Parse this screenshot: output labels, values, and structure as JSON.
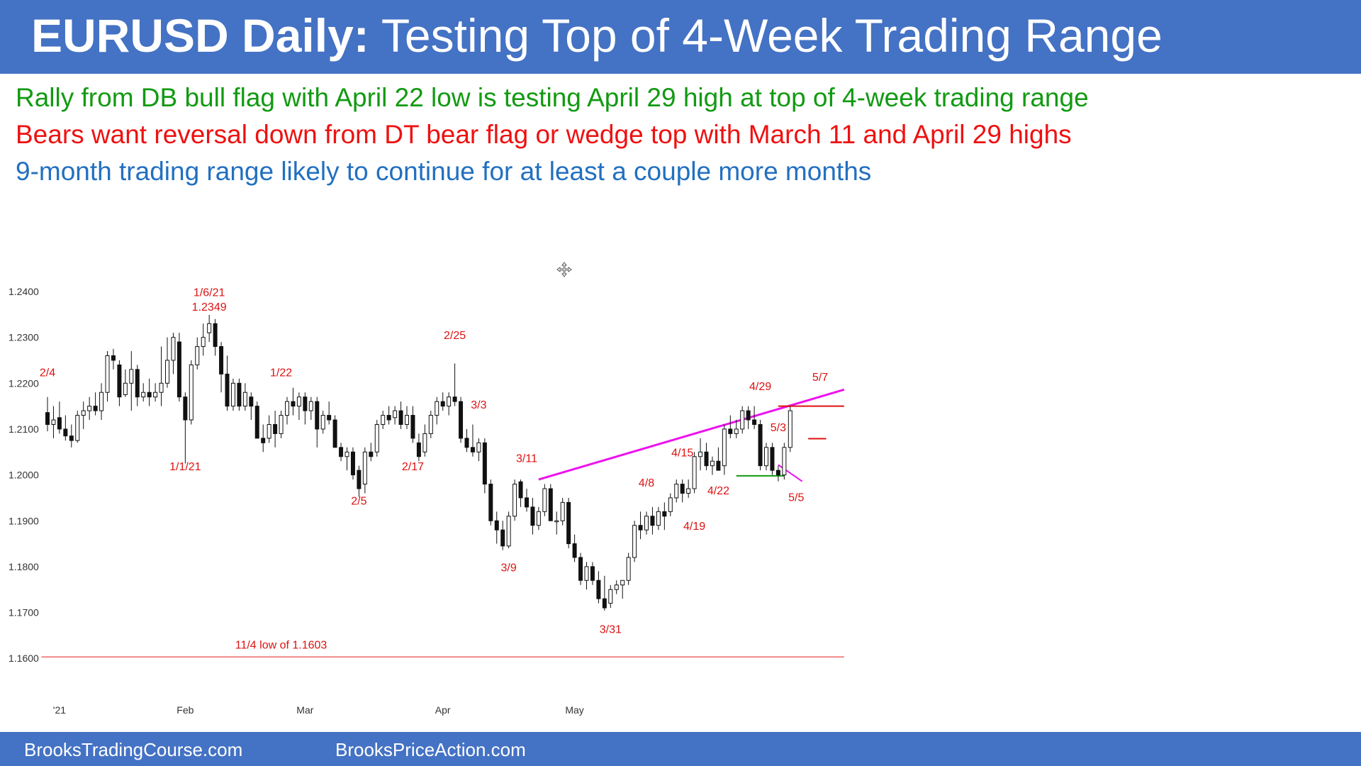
{
  "header": {
    "title_bold": "EURUSD Daily:",
    "title_rest": " Testing Top of 4-Week Trading Range"
  },
  "bullets": [
    "Rally from DB bull flag with April 22 low is testing April 29 high at top of 4-week trading range",
    "Bears want reversal down from DT bear flag or wedge top with March 11 and April 29 highs",
    "9-month trading range likely to continue for at least a couple more months"
  ],
  "colors": {
    "banner": "#4472c4",
    "bullish_text": "#129a12",
    "bearish_text": "#ee1111",
    "neutral_text": "#2270c0",
    "annotation": "#dd1111",
    "trendline": "#ee11ee",
    "support_line": "#ee6666",
    "range_low_line": "#119911"
  },
  "footer": {
    "left": "BrooksTradingCourse.com",
    "right": "BrooksPriceAction.com"
  },
  "icons": {
    "center": "move-icon"
  },
  "chart_data": {
    "type": "candlestick",
    "title": "",
    "xlabel": "",
    "ylabel": "",
    "ylim": [
      1.156,
      1.243
    ],
    "y_ticks": [
      "1.2400",
      "1.2300",
      "1.2200",
      "1.2100",
      "1.2000",
      "1.1900",
      "1.1800",
      "1.1700",
      "1.1600"
    ],
    "x_ticks": [
      {
        "label": "'21",
        "date": "2021-01-01"
      },
      {
        "label": "Feb",
        "date": "2021-02-01"
      },
      {
        "label": "Mar",
        "date": "2021-03-01"
      },
      {
        "label": "Apr",
        "date": "2021-04-01"
      },
      {
        "label": "May",
        "date": "2021-05-03"
      }
    ],
    "candles": [
      [
        1.2136,
        1.217,
        1.2095,
        1.211
      ],
      [
        1.211,
        1.215,
        1.208,
        1.212
      ],
      [
        1.2125,
        1.216,
        1.209,
        1.21
      ],
      [
        1.21,
        1.213,
        1.2075,
        1.2085
      ],
      [
        1.2085,
        1.211,
        1.206,
        1.2075
      ],
      [
        1.2075,
        1.214,
        1.207,
        1.213
      ],
      [
        1.213,
        1.216,
        1.21,
        1.214
      ],
      [
        1.214,
        1.217,
        1.212,
        1.215
      ],
      [
        1.215,
        1.218,
        1.213,
        1.214
      ],
      [
        1.214,
        1.22,
        1.212,
        1.218
      ],
      [
        1.218,
        1.227,
        1.216,
        1.226
      ],
      [
        1.226,
        1.2275,
        1.223,
        1.225
      ],
      [
        1.224,
        1.225,
        1.215,
        1.217
      ],
      [
        1.2175,
        1.223,
        1.217,
        1.22
      ],
      [
        1.22,
        1.227,
        1.214,
        1.223
      ],
      [
        1.223,
        1.224,
        1.215,
        1.217
      ],
      [
        1.217,
        1.22,
        1.216,
        1.218
      ],
      [
        1.218,
        1.221,
        1.215,
        1.217
      ],
      [
        1.217,
        1.22,
        1.216,
        1.218
      ],
      [
        1.218,
        1.228,
        1.215,
        1.22
      ],
      [
        1.22,
        1.23,
        1.219,
        1.225
      ],
      [
        1.225,
        1.231,
        1.222,
        1.23
      ],
      [
        1.229,
        1.231,
        1.216,
        1.217
      ],
      [
        1.217,
        1.218,
        1.2025,
        1.212
      ],
      [
        1.212,
        1.225,
        1.211,
        1.224
      ],
      [
        1.224,
        1.23,
        1.223,
        1.228
      ],
      [
        1.228,
        1.233,
        1.226,
        1.23
      ],
      [
        1.231,
        1.2349,
        1.229,
        1.233
      ],
      [
        1.233,
        1.234,
        1.226,
        1.228
      ],
      [
        1.228,
        1.229,
        1.218,
        1.222
      ],
      [
        1.222,
        1.226,
        1.214,
        1.215
      ],
      [
        1.215,
        1.221,
        1.214,
        1.22
      ],
      [
        1.22,
        1.221,
        1.214,
        1.215
      ],
      [
        1.215,
        1.22,
        1.214,
        1.218
      ],
      [
        1.217,
        1.218,
        1.212,
        1.215
      ],
      [
        1.215,
        1.216,
        1.208,
        1.208
      ],
      [
        1.208,
        1.211,
        1.205,
        1.207
      ],
      [
        1.208,
        1.213,
        1.207,
        1.211
      ],
      [
        1.211,
        1.214,
        1.206,
        1.209
      ],
      [
        1.209,
        1.214,
        1.208,
        1.213
      ],
      [
        1.213,
        1.217,
        1.211,
        1.216
      ],
      [
        1.216,
        1.219,
        1.213,
        1.215
      ],
      [
        1.215,
        1.218,
        1.212,
        1.217
      ],
      [
        1.217,
        1.218,
        1.211,
        1.214
      ],
      [
        1.214,
        1.217,
        1.212,
        1.216
      ],
      [
        1.216,
        1.217,
        1.206,
        1.21
      ],
      [
        1.21,
        1.214,
        1.209,
        1.213
      ],
      [
        1.213,
        1.216,
        1.211,
        1.212
      ],
      [
        1.212,
        1.213,
        1.206,
        1.206
      ],
      [
        1.206,
        1.207,
        1.203,
        1.204
      ],
      [
        1.204,
        1.206,
        1.201,
        1.205
      ],
      [
        1.205,
        1.206,
        1.199,
        1.2
      ],
      [
        1.201,
        1.202,
        1.1952,
        1.197
      ],
      [
        1.198,
        1.206,
        1.196,
        1.205
      ],
      [
        1.205,
        1.207,
        1.203,
        1.204
      ],
      [
        1.205,
        1.212,
        1.204,
        1.211
      ],
      [
        1.211,
        1.214,
        1.21,
        1.213
      ],
      [
        1.213,
        1.215,
        1.211,
        1.212
      ],
      [
        1.2125,
        1.215,
        1.211,
        1.214
      ],
      [
        1.214,
        1.216,
        1.21,
        1.211
      ],
      [
        1.211,
        1.215,
        1.21,
        1.213
      ],
      [
        1.213,
        1.215,
        1.207,
        1.208
      ],
      [
        1.207,
        1.209,
        1.203,
        1.204
      ],
      [
        1.205,
        1.211,
        1.204,
        1.209
      ],
      [
        1.209,
        1.214,
        1.208,
        1.213
      ],
      [
        1.213,
        1.217,
        1.211,
        1.216
      ],
      [
        1.216,
        1.218,
        1.214,
        1.215
      ],
      [
        1.215,
        1.218,
        1.213,
        1.217
      ],
      [
        1.217,
        1.2243,
        1.215,
        1.216
      ],
      [
        1.216,
        1.217,
        1.207,
        1.208
      ],
      [
        1.208,
        1.21,
        1.205,
        1.206
      ],
      [
        1.206,
        1.211,
        1.204,
        1.205
      ],
      [
        1.205,
        1.208,
        1.203,
        1.207
      ],
      [
        1.207,
        1.208,
        1.196,
        1.198
      ],
      [
        1.198,
        1.199,
        1.189,
        1.19
      ],
      [
        1.19,
        1.192,
        1.185,
        1.188
      ],
      [
        1.188,
        1.19,
        1.1836,
        1.1845
      ],
      [
        1.1845,
        1.192,
        1.184,
        1.191
      ],
      [
        1.191,
        1.199,
        1.19,
        1.198
      ],
      [
        1.1985,
        1.199,
        1.193,
        1.195
      ],
      [
        1.195,
        1.197,
        1.192,
        1.193
      ],
      [
        1.193,
        1.195,
        1.187,
        1.189
      ],
      [
        1.189,
        1.193,
        1.188,
        1.192
      ],
      [
        1.192,
        1.198,
        1.191,
        1.197
      ],
      [
        1.197,
        1.198,
        1.19,
        1.19
      ],
      [
        1.19,
        1.192,
        1.187,
        1.19
      ],
      [
        1.19,
        1.195,
        1.189,
        1.194
      ],
      [
        1.194,
        1.195,
        1.184,
        1.185
      ],
      [
        1.185,
        1.187,
        1.181,
        1.182
      ],
      [
        1.182,
        1.183,
        1.176,
        1.177
      ],
      [
        1.177,
        1.181,
        1.175,
        1.18
      ],
      [
        1.18,
        1.181,
        1.176,
        1.177
      ],
      [
        1.177,
        1.179,
        1.172,
        1.173
      ],
      [
        1.173,
        1.178,
        1.1704,
        1.171
      ],
      [
        1.172,
        1.176,
        1.171,
        1.175
      ],
      [
        1.175,
        1.177,
        1.174,
        1.176
      ],
      [
        1.176,
        1.177,
        1.173,
        1.177
      ],
      [
        1.177,
        1.183,
        1.176,
        1.182
      ],
      [
        1.182,
        1.19,
        1.181,
        1.189
      ],
      [
        1.189,
        1.192,
        1.186,
        1.188
      ],
      [
        1.188,
        1.192,
        1.187,
        1.191
      ],
      [
        1.191,
        1.193,
        1.187,
        1.189
      ],
      [
        1.189,
        1.193,
        1.188,
        1.192
      ],
      [
        1.192,
        1.194,
        1.188,
        1.191
      ],
      [
        1.192,
        1.196,
        1.191,
        1.195
      ],
      [
        1.195,
        1.199,
        1.194,
        1.198
      ],
      [
        1.198,
        1.199,
        1.194,
        1.196
      ],
      [
        1.196,
        1.199,
        1.195,
        1.197
      ],
      [
        1.197,
        1.205,
        1.196,
        1.204
      ],
      [
        1.204,
        1.208,
        1.201,
        1.205
      ],
      [
        1.205,
        1.207,
        1.201,
        1.202
      ],
      [
        1.202,
        1.204,
        1.2,
        1.203
      ],
      [
        1.203,
        1.206,
        1.201,
        1.201
      ],
      [
        1.202,
        1.211,
        1.2,
        1.21
      ],
      [
        1.21,
        1.213,
        1.208,
        1.209
      ],
      [
        1.209,
        1.212,
        1.208,
        1.21
      ],
      [
        1.21,
        1.215,
        1.209,
        1.214
      ],
      [
        1.214,
        1.215,
        1.21,
        1.212
      ],
      [
        1.212,
        1.215,
        1.21,
        1.211
      ],
      [
        1.211,
        1.212,
        1.201,
        1.202
      ],
      [
        1.202,
        1.207,
        1.201,
        1.206
      ],
      [
        1.206,
        1.207,
        1.2,
        1.201
      ],
      [
        1.201,
        1.202,
        1.1986,
        1.2
      ],
      [
        1.2,
        1.207,
        1.199,
        1.206
      ],
      [
        1.206,
        1.215,
        1.205,
        1.214
      ]
    ],
    "lines": [
      {
        "name": "wedge-trendline",
        "kind": "trendline",
        "from": {
          "bar": 82,
          "price": 1.199
        },
        "to": {
          "bar": 133,
          "price": 1.2186
        }
      },
      {
        "name": "april-29-high-line",
        "kind": "resistance",
        "from": {
          "bar": 122,
          "price": 1.215
        },
        "to": {
          "bar": 133,
          "price": 1.215
        }
      },
      {
        "name": "may-3-high-line",
        "kind": "resistance",
        "from": {
          "bar": 127,
          "price": 1.2079
        },
        "to": {
          "bar": 130,
          "price": 1.2079
        }
      },
      {
        "name": "april-22-low-line",
        "kind": "support",
        "from": {
          "bar": 115,
          "price": 1.1998
        },
        "to": {
          "bar": 123,
          "price": 1.1998
        }
      },
      {
        "name": "may-5-low-wedge-line",
        "kind": "trendline",
        "from": {
          "bar": 122,
          "price": 1.2022
        },
        "to": {
          "bar": 126,
          "price": 1.1986
        }
      },
      {
        "name": "nov-4-low-line",
        "kind": "support",
        "from": {
          "bar": -1,
          "price": 1.1603
        },
        "to": {
          "bar": 133,
          "price": 1.1603
        }
      }
    ],
    "annotations": [
      {
        "text": "1/6/21",
        "bar": 27,
        "price": 1.239
      },
      {
        "text": "1.2349",
        "bar": 27,
        "price": 1.2358
      },
      {
        "text": "1/1/21",
        "bar": 23,
        "price": 1.201
      },
      {
        "text": "2/4",
        "bar": 0,
        "price": 1.2215
      },
      {
        "text": "1/22",
        "bar": 39,
        "price": 1.2215
      },
      {
        "text": "2/5",
        "bar": 52,
        "price": 1.1935
      },
      {
        "text": "2/17",
        "bar": 61,
        "price": 1.201
      },
      {
        "text": "2/25",
        "bar": 68,
        "price": 1.2296
      },
      {
        "text": "3/3",
        "bar": 72,
        "price": 1.2145
      },
      {
        "text": "3/11",
        "bar": 80,
        "price": 1.2028
      },
      {
        "text": "3/9",
        "bar": 77,
        "price": 1.179
      },
      {
        "text": "3/31",
        "bar": 94,
        "price": 1.1655
      },
      {
        "text": "4/8",
        "bar": 100,
        "price": 1.1975
      },
      {
        "text": "4/15",
        "bar": 106,
        "price": 1.204
      },
      {
        "text": "4/22",
        "bar": 112,
        "price": 1.1958
      },
      {
        "text": "4/19",
        "bar": 108,
        "price": 1.188
      },
      {
        "text": "4/29",
        "bar": 119,
        "price": 1.2185
      },
      {
        "text": "5/3",
        "bar": 122,
        "price": 1.2095
      },
      {
        "text": "5/5",
        "bar": 125,
        "price": 1.1943
      },
      {
        "text": "5/7",
        "bar": 129,
        "price": 1.2205
      },
      {
        "text": "11/4 low of 1.1603",
        "bar": 39,
        "price": 1.1621
      }
    ],
    "grid": false,
    "legend": "none"
  }
}
